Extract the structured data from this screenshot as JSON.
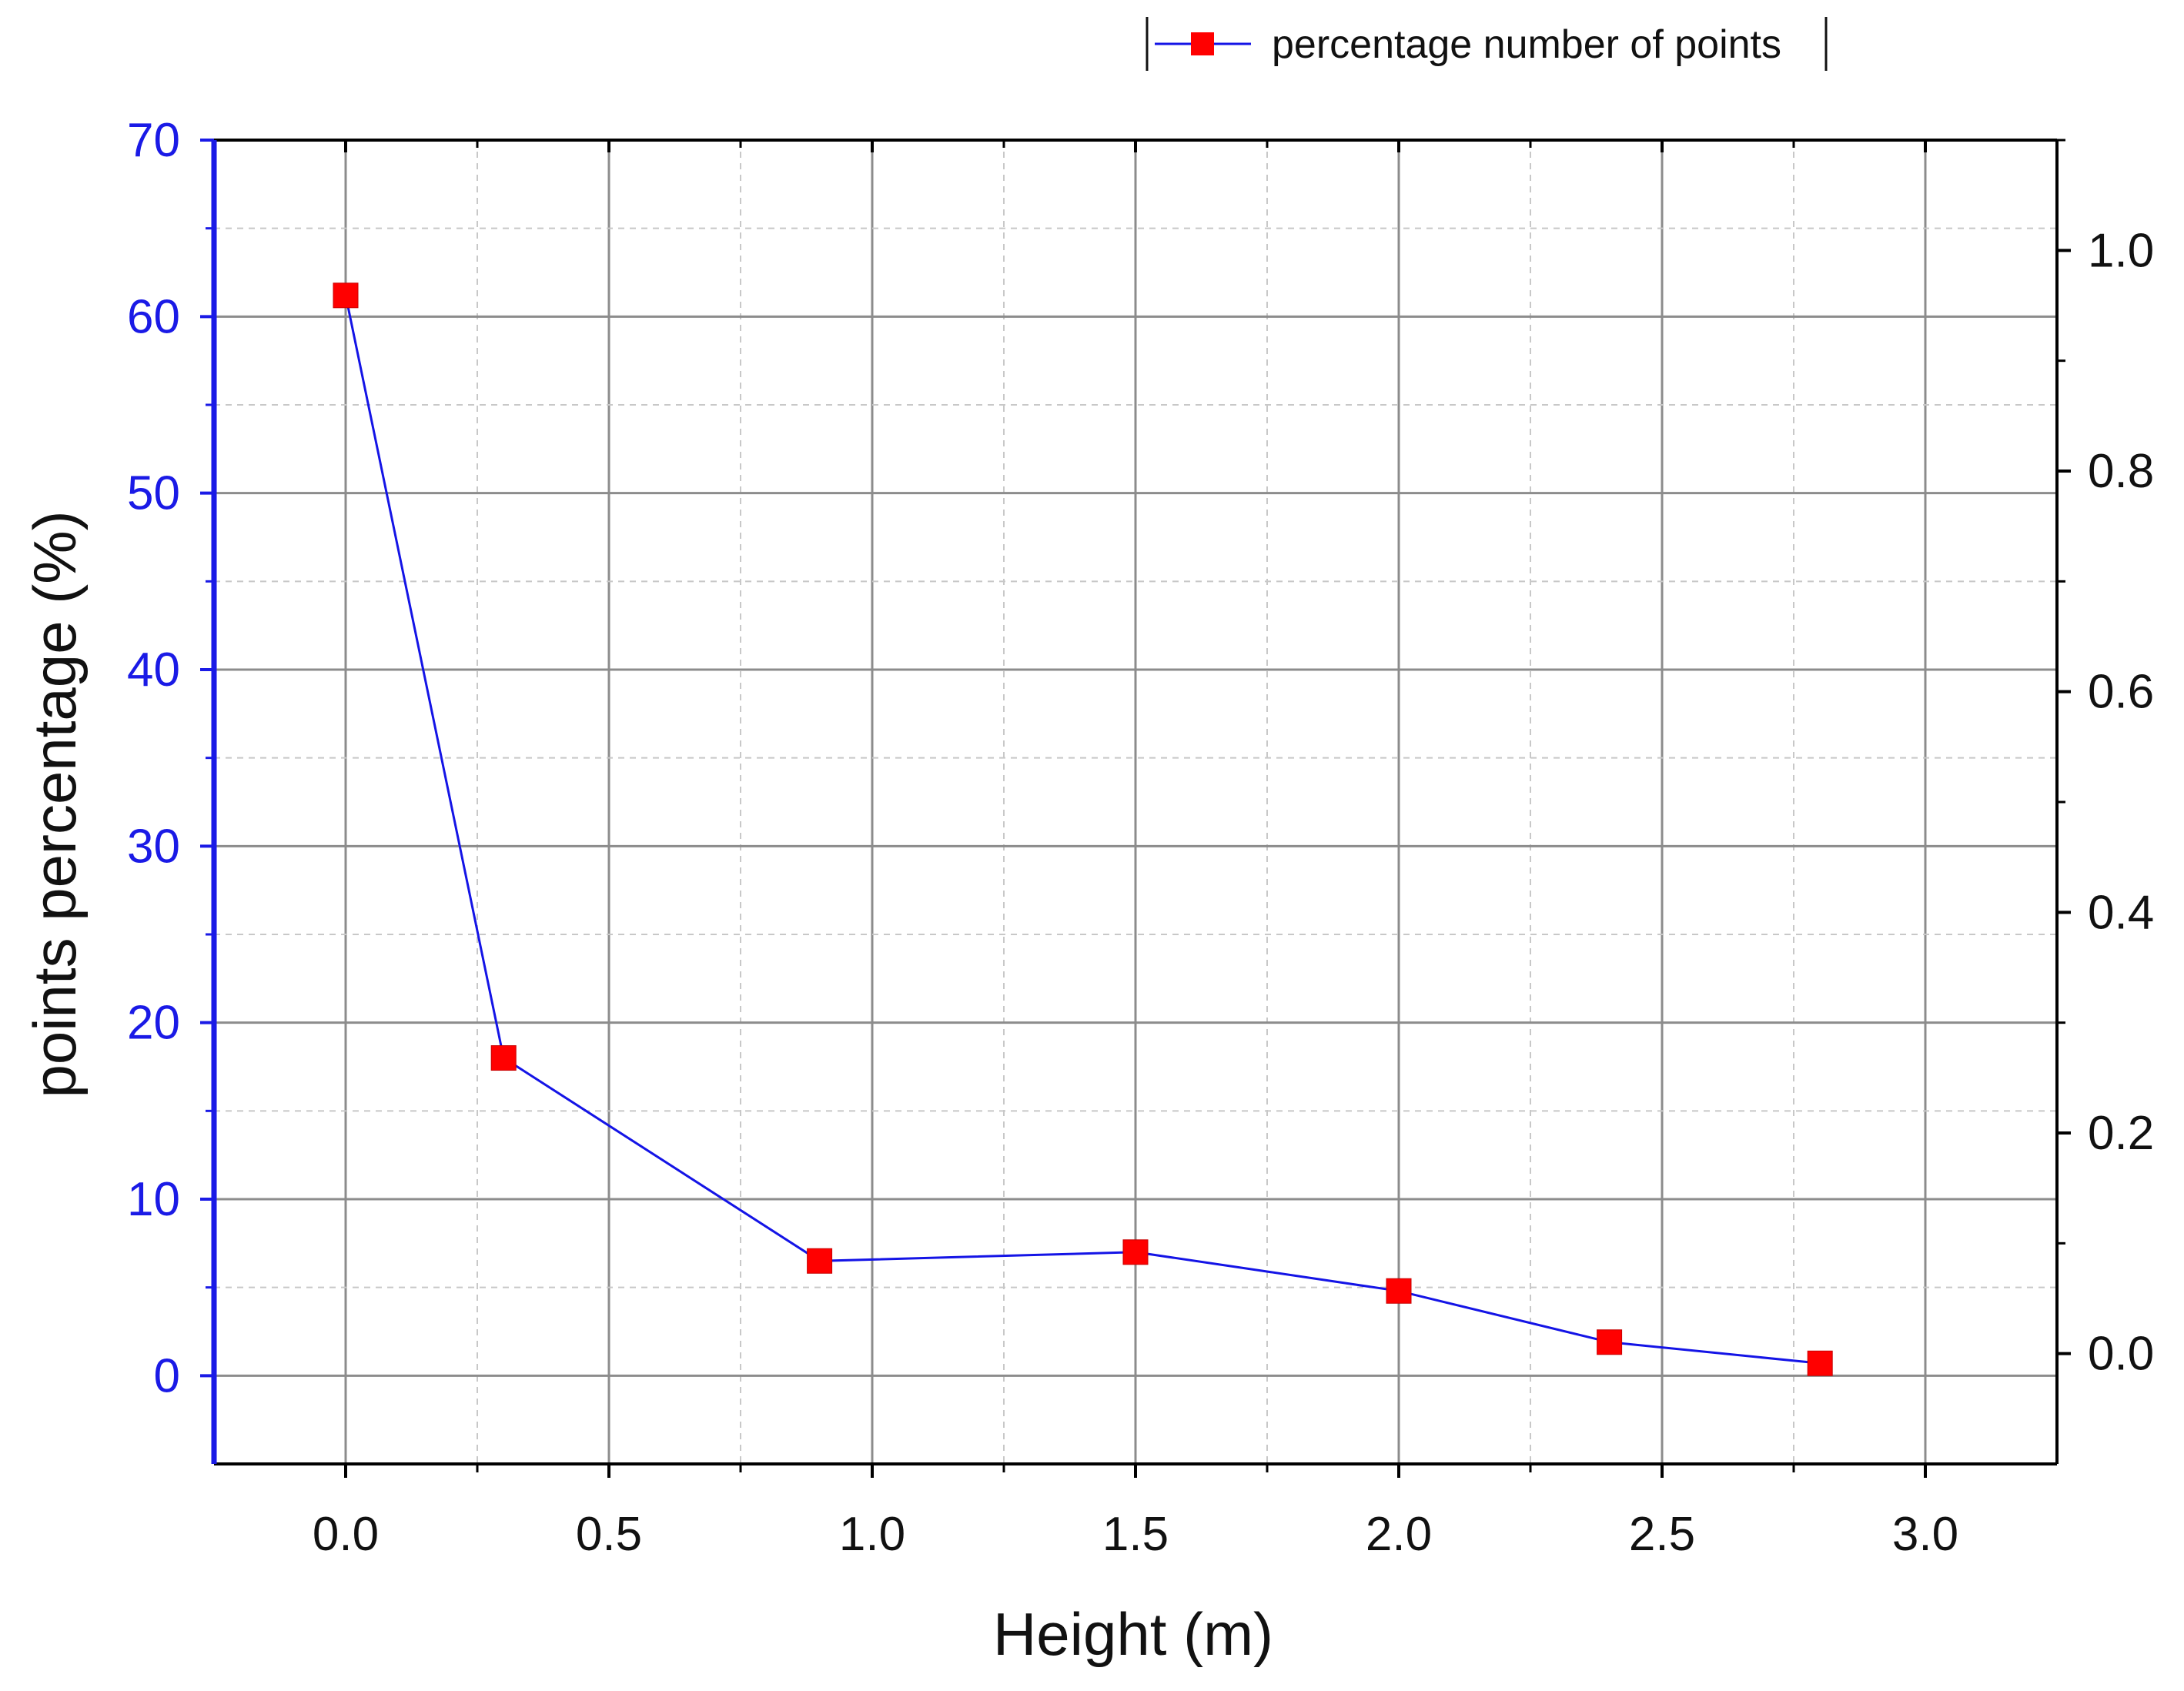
{
  "chart_data": {
    "type": "line",
    "title": "",
    "xlabel": "Height (m)",
    "ylabel": "points percentage (%)",
    "xlim": [
      -0.25,
      3.25
    ],
    "ylim": [
      -5,
      70
    ],
    "y2lim": [
      -0.1,
      1.1
    ],
    "x_ticks": [
      "0.0",
      "0.5",
      "1.0",
      "1.5",
      "2.0",
      "2.5",
      "3.0"
    ],
    "x_tick_values": [
      0,
      0.5,
      1.0,
      1.5,
      2.0,
      2.5,
      3.0
    ],
    "y_ticks": [
      "0",
      "10",
      "20",
      "30",
      "40",
      "50",
      "60",
      "70"
    ],
    "y_tick_values": [
      0,
      10,
      20,
      30,
      40,
      50,
      60,
      70
    ],
    "y2_ticks": [
      "0.0",
      "0.2",
      "0.4",
      "0.6",
      "0.8",
      "1.0"
    ],
    "y2_tick_values": [
      0,
      0.2,
      0.4,
      0.6,
      0.8,
      1.0
    ],
    "grid": true,
    "legend_position": "top-right",
    "series": [
      {
        "name": "percentage number of points",
        "x": [
          0.0,
          0.3,
          0.9,
          1.5,
          2.0,
          2.4,
          2.8
        ],
        "values": [
          61.2,
          18.0,
          6.5,
          7.0,
          4.8,
          1.9,
          0.7
        ]
      }
    ],
    "colors": {
      "line": "#1414e6",
      "marker": "#ff0000",
      "left_axis": "#1a1ae6",
      "right_axis": "#000000",
      "grid_major": "#8c8c8c",
      "grid_minor": "#c8c8c8"
    }
  }
}
